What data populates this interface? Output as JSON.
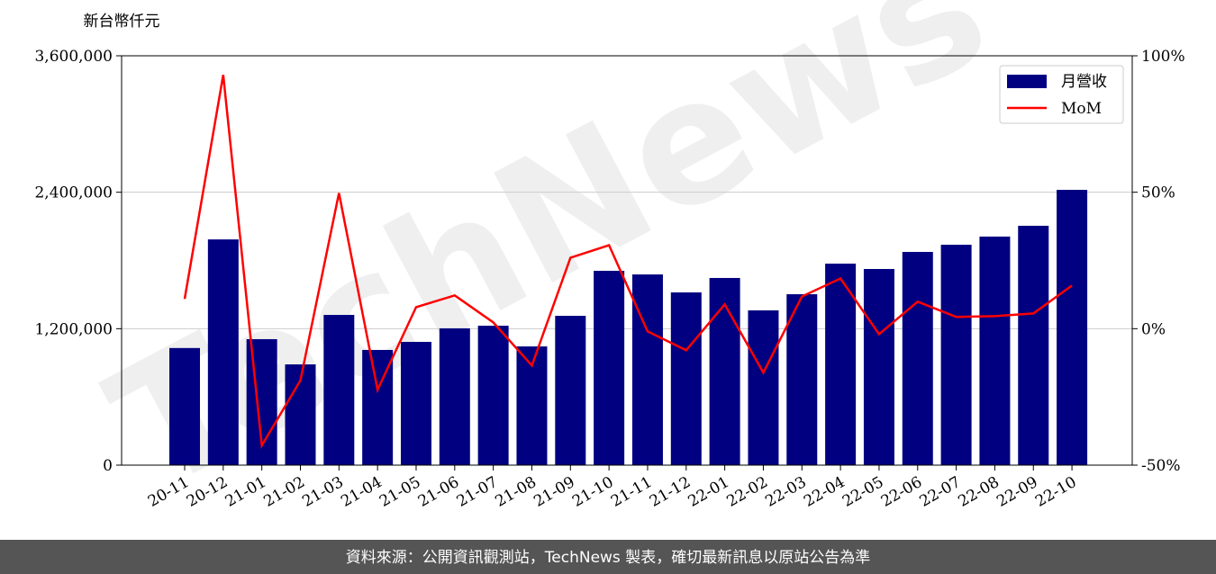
{
  "chart_data": {
    "type": "bar_line",
    "y_label": "新台幣仟元",
    "watermark": "TechNews",
    "footer": "資料來源：公開資訊觀測站，TechNews 製表，確切最新訊息以原站公告為準",
    "categories": [
      "20-11",
      "20-12",
      "21-01",
      "21-02",
      "21-03",
      "21-04",
      "21-05",
      "21-06",
      "21-07",
      "21-08",
      "21-09",
      "21-10",
      "21-11",
      "21-12",
      "22-01",
      "22-02",
      "22-03",
      "22-04",
      "22-05",
      "22-06",
      "22-07",
      "22-08",
      "22-09",
      "22-10"
    ],
    "series": [
      {
        "name": "月營收",
        "type": "bar",
        "color": "#000080",
        "axis": "y",
        "values": [
          1030000,
          1985000,
          1108000,
          886000,
          1321000,
          1013000,
          1084000,
          1203000,
          1226000,
          1044000,
          1313000,
          1709000,
          1677000,
          1519000,
          1646000,
          1361000,
          1503000,
          1772000,
          1725000,
          1875000,
          1938000,
          2010000,
          2105000,
          2421000
        ]
      },
      {
        "name": "MoM",
        "type": "line",
        "color": "#ff0000",
        "axis": "y2",
        "values": [
          10.9,
          93,
          -42.8,
          -19,
          49.7,
          -22.4,
          7.9,
          12.2,
          2.3,
          -13.5,
          26,
          30.6,
          -1,
          -7.9,
          8.9,
          -16.1,
          11.8,
          18.4,
          -2,
          9.9,
          4.3,
          4.6,
          5.6,
          15.8
        ]
      }
    ],
    "ylim": [
      0,
      3600000
    ],
    "yticks": [
      0,
      {
        "value": 1200000,
        "label": "1,200,000"
      },
      {
        "value": 2400000,
        "label": "2,400,000"
      },
      {
        "value": 3600000,
        "label": "3,600,000"
      }
    ],
    "y2lim": [
      -50,
      100
    ],
    "y2ticks": [
      {
        "value": -50,
        "label": "-50%"
      },
      {
        "value": 0,
        "label": "0%"
      },
      {
        "value": 50,
        "label": "50%"
      },
      {
        "value": 100,
        "label": "100%"
      }
    ],
    "grid": true,
    "legend": "upper right"
  }
}
